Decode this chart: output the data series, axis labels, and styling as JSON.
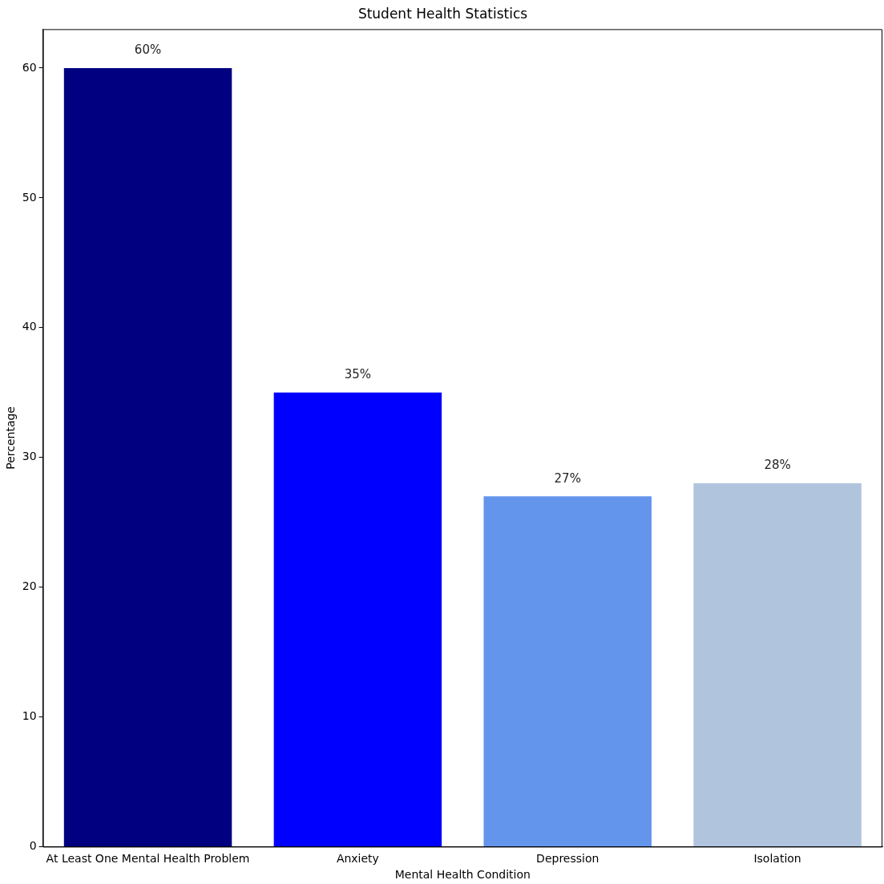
{
  "chart_data": {
    "type": "bar",
    "title": "Student Health Statistics",
    "xlabel": "Mental Health Condition",
    "ylabel": "Percentage",
    "categories": [
      "At Least One Mental Health Problem",
      "Anxiety",
      "Depression",
      "Isolation"
    ],
    "values": [
      60,
      35,
      27,
      28
    ],
    "colors": [
      "#000080",
      "#0000ff",
      "#6495ed",
      "#b0c4de"
    ],
    "value_labels": [
      "60%",
      "35%",
      "27%",
      "28%"
    ],
    "ylim": [
      0,
      63
    ],
    "yticks": [
      0,
      10,
      20,
      30,
      40,
      50,
      60
    ],
    "grid": false,
    "legend": false
  }
}
